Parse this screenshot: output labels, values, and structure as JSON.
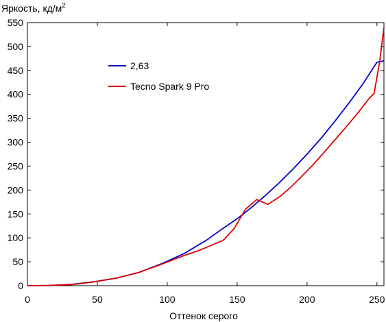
{
  "chart_data": {
    "type": "line",
    "ylabel": "Яркость, кд/м",
    "ylabel_superscript": "2",
    "xlabel": "Оттенок серого",
    "xlim": [
      0,
      255
    ],
    "ylim": [
      0,
      550
    ],
    "xticks": [
      0,
      50,
      100,
      150,
      200,
      250
    ],
    "yticks": [
      0,
      50,
      100,
      150,
      200,
      250,
      300,
      350,
      400,
      450,
      500,
      550
    ],
    "grid": false,
    "legend_position": "upper-left",
    "series": [
      {
        "name": "2,63",
        "color": "#0000cc",
        "x": [
          0,
          16,
          32,
          48,
          64,
          80,
          96,
          112,
          128,
          140,
          150,
          160,
          170,
          180,
          190,
          200,
          210,
          220,
          230,
          240,
          250,
          255
        ],
        "y": [
          0,
          0.5,
          2.8,
          8.5,
          16,
          28,
          46,
          67,
          95,
          120,
          140,
          163,
          188,
          215,
          244,
          275,
          308,
          344,
          382,
          422,
          467,
          470
        ]
      },
      {
        "name": "Tecno Spark 9 Pro",
        "color": "#dd0000",
        "x": [
          0,
          16,
          32,
          48,
          64,
          80,
          96,
          112,
          124,
          132,
          140,
          148,
          156,
          164,
          172,
          180,
          188,
          196,
          204,
          212,
          220,
          228,
          236,
          244,
          248,
          252,
          255
        ],
        "y": [
          0,
          0.5,
          2.5,
          8,
          16,
          28,
          45,
          63,
          75,
          85,
          95,
          120,
          160,
          180,
          170,
          185,
          205,
          228,
          252,
          278,
          305,
          332,
          360,
          390,
          402,
          470,
          540
        ]
      }
    ]
  }
}
